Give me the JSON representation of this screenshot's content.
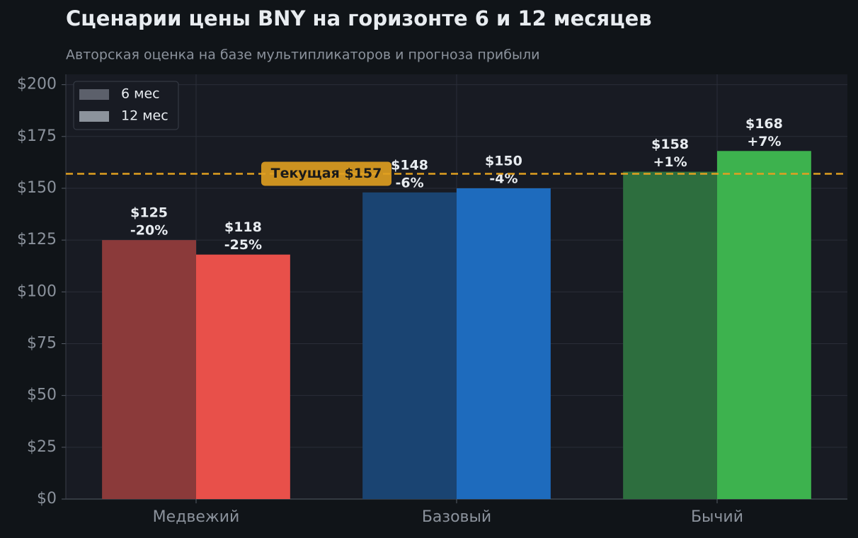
{
  "chart_data": {
    "type": "bar",
    "title": "Сценарии цены BNY на горизонте 6 и 12 месяцев",
    "subtitle": "Авторская оценка на базе мультипликаторов и прогноза прибыли",
    "categories": [
      "Медвежий",
      "Базовый",
      "Бычий"
    ],
    "series": [
      {
        "name": "6 мес",
        "color": "#5c606b",
        "colors": [
          "#8b3a3a",
          "#1a4472",
          "#2d6e3e"
        ],
        "values": [
          125,
          148,
          158
        ],
        "value_labels": [
          "$125",
          "$148",
          "$158"
        ],
        "change_labels": [
          "-20%",
          "-6%",
          "+1%"
        ]
      },
      {
        "name": "12 мес",
        "color": "#8c939c",
        "colors": [
          "#e8504a",
          "#1e6bbd",
          "#3db24e"
        ],
        "values": [
          118,
          150,
          168
        ],
        "value_labels": [
          "$118",
          "$150",
          "$168"
        ],
        "change_labels": [
          "-25%",
          "-4%",
          "+7%"
        ]
      }
    ],
    "reference_line": {
      "value": 157,
      "label": "Текущая $157",
      "color": "#e0a020"
    },
    "ylim": [
      0,
      205
    ],
    "yticks": [
      {
        "value": 0,
        "label": "$0"
      },
      {
        "value": 25,
        "label": "$25"
      },
      {
        "value": 50,
        "label": "$50"
      },
      {
        "value": 75,
        "label": "$75"
      },
      {
        "value": 100,
        "label": "$100"
      },
      {
        "value": 125,
        "label": "$125"
      },
      {
        "value": 150,
        "label": "$150"
      },
      {
        "value": 175,
        "label": "$175"
      },
      {
        "value": 200,
        "label": "$200"
      }
    ],
    "grid": true,
    "legend": "upper left"
  }
}
